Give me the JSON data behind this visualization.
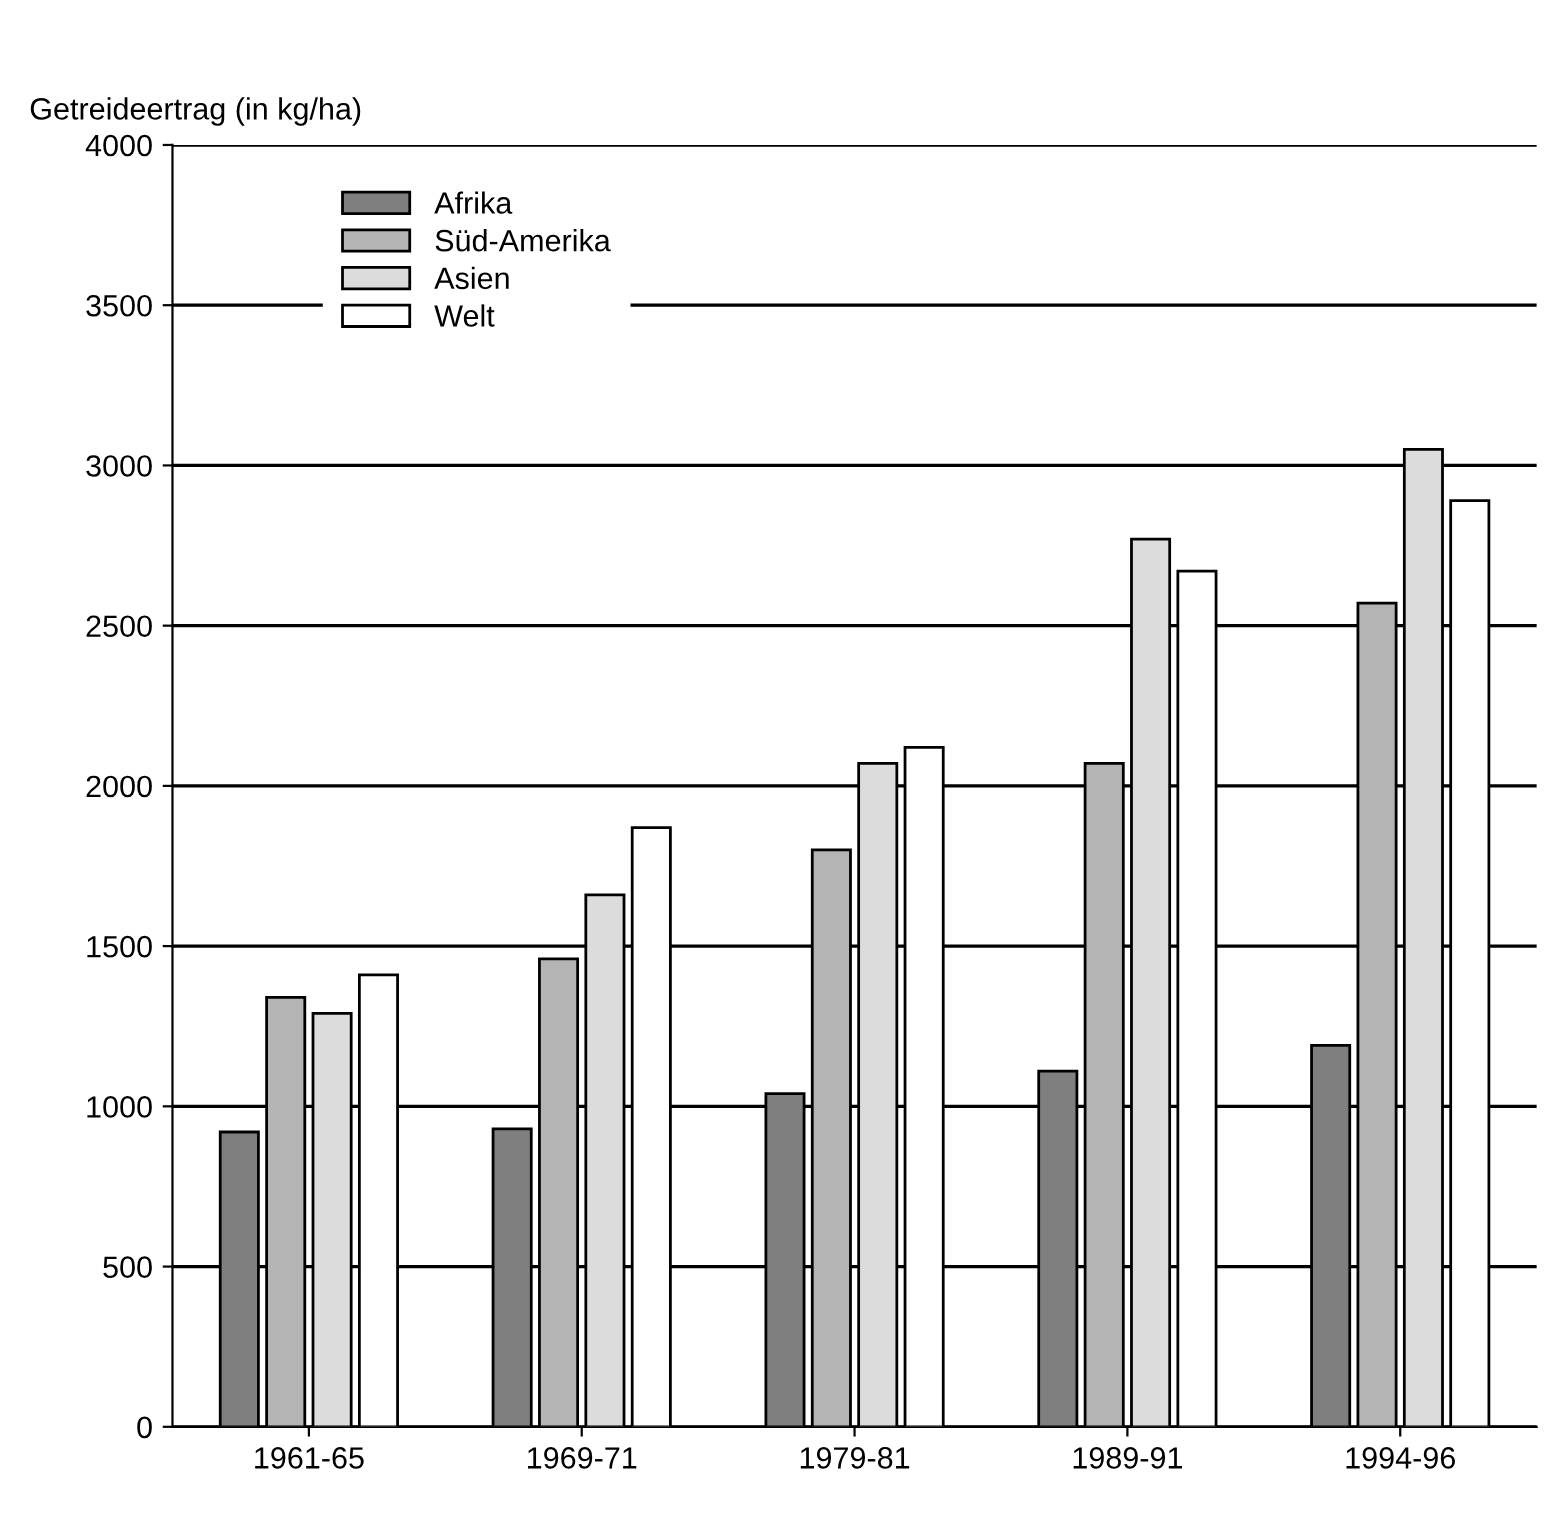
{
  "chart_data": {
    "type": "bar",
    "ylabel": "Getreideertrag (in kg/ha)",
    "categories": [
      "1961-65",
      "1969-71",
      "1979-81",
      "1989-91",
      "1994-96"
    ],
    "series": [
      {
        "name": "Afrika",
        "color": "#7f7f7f",
        "values": [
          920,
          930,
          1040,
          1110,
          1190
        ]
      },
      {
        "name": "Süd-Amerika",
        "color": "#b4b4b4",
        "values": [
          1340,
          1460,
          1800,
          2070,
          2570
        ]
      },
      {
        "name": "Asien",
        "color": "#dcdcdc",
        "values": [
          1290,
          1660,
          2070,
          2770,
          3050
        ]
      },
      {
        "name": "Welt",
        "color": "#ffffff",
        "values": [
          1410,
          1870,
          2120,
          2670,
          2890
        ]
      }
    ],
    "ylim": [
      0,
      4000
    ],
    "yticks": [
      0,
      500,
      1000,
      1500,
      2000,
      2500,
      3000,
      3500,
      4000
    ],
    "grid": "y",
    "legend": "top left"
  }
}
